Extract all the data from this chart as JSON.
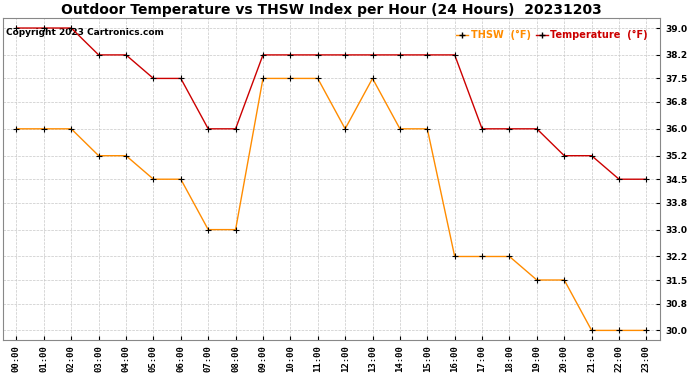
{
  "title": "Outdoor Temperature vs THSW Index per Hour (24 Hours)  20231203",
  "copyright": "Copyright 2023 Cartronics.com",
  "legend_thsw": "THSW  (°F)",
  "legend_temp": "Temperature  (°F)",
  "hours": [
    "00:00",
    "01:00",
    "02:00",
    "03:00",
    "04:00",
    "05:00",
    "06:00",
    "07:00",
    "08:00",
    "09:00",
    "10:00",
    "11:00",
    "12:00",
    "13:00",
    "14:00",
    "15:00",
    "16:00",
    "17:00",
    "18:00",
    "19:00",
    "20:00",
    "21:00",
    "22:00",
    "23:00"
  ],
  "temperature": [
    39.0,
    39.0,
    39.0,
    38.2,
    38.2,
    37.5,
    37.5,
    36.0,
    36.0,
    38.2,
    38.2,
    38.2,
    38.2,
    38.2,
    38.2,
    38.2,
    38.2,
    36.0,
    36.0,
    36.0,
    35.2,
    35.2,
    34.5,
    34.5
  ],
  "thsw": [
    36.0,
    36.0,
    36.0,
    35.2,
    35.2,
    34.5,
    34.5,
    33.0,
    33.0,
    37.5,
    37.5,
    37.5,
    36.0,
    37.5,
    36.0,
    36.0,
    32.2,
    32.2,
    32.2,
    31.5,
    31.5,
    30.0,
    30.0,
    30.0
  ],
  "temp_color": "#cc0000",
  "thsw_color": "#ff8c00",
  "marker_color": "#000000",
  "ylim_min": 29.7,
  "ylim_max": 39.3,
  "yticks": [
    30.0,
    30.8,
    31.5,
    32.2,
    33.0,
    33.8,
    34.5,
    35.2,
    36.0,
    36.8,
    37.5,
    38.2,
    39.0
  ],
  "background_color": "#ffffff",
  "grid_color": "#c8c8c8",
  "title_fontsize": 10,
  "label_fontsize": 7,
  "tick_fontsize": 6.5,
  "copyright_fontsize": 6.5
}
